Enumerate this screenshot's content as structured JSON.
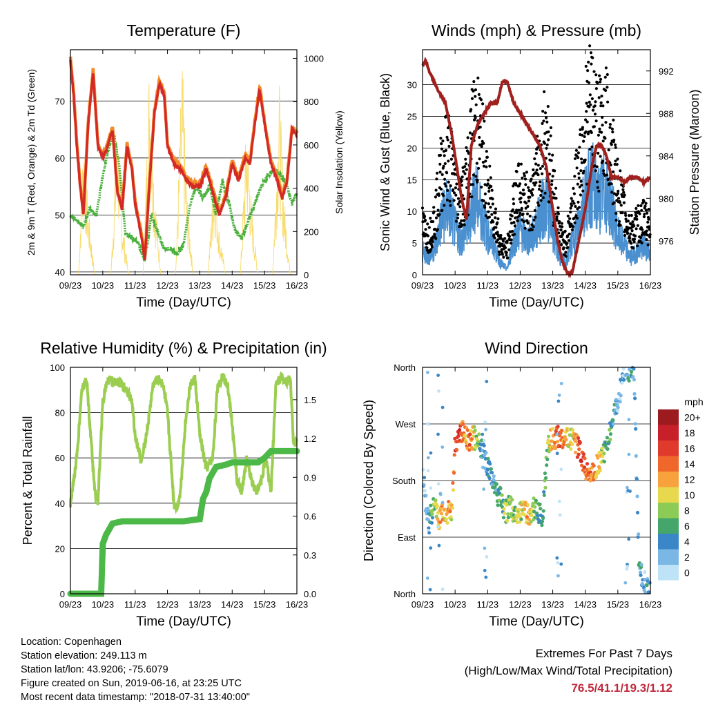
{
  "chart_data": [
    {
      "type": "line",
      "title": "Temperature (F)",
      "xlabel": "Time (Day/UTC)",
      "ylabel": "2m & 9m T (Red, Orange) & 2m Td (Green)",
      "y2label": "Solar Insolation (Yellow)",
      "x_ticks": [
        "09/23",
        "10/23",
        "11/23",
        "12/23",
        "13/23",
        "14/23",
        "15/23",
        "16/23"
      ],
      "y_ticks": [
        40,
        50,
        60,
        70
      ],
      "y2_ticks": [
        0,
        200,
        400,
        600,
        800,
        1000
      ],
      "ylim": [
        39.5,
        79
      ],
      "y2lim": [
        0,
        1040
      ],
      "xlim": [
        0,
        7
      ],
      "colors": {
        "t2m": "#d42a26",
        "t9m": "#f28a2a",
        "td": "#4ab03c",
        "solar": "#f7dc6f"
      },
      "series": [
        {
          "key": "t2m",
          "x": [
            0,
            0.1,
            0.2,
            0.3,
            0.4,
            0.55,
            0.7,
            0.85,
            1.0,
            1.15,
            1.3,
            1.45,
            1.6,
            1.75,
            1.9,
            2.0,
            2.1,
            2.2,
            2.3,
            2.45,
            2.6,
            2.75,
            2.9,
            3.0,
            3.2,
            3.4,
            3.6,
            3.8,
            4.0,
            4.2,
            4.4,
            4.6,
            4.8,
            5.0,
            5.2,
            5.4,
            5.55,
            5.7,
            5.85,
            6.0,
            6.2,
            6.4,
            6.55,
            6.7,
            6.85,
            7.0
          ],
          "y": [
            77,
            71,
            62,
            55,
            50,
            66,
            75,
            62,
            60,
            62,
            65,
            54,
            51,
            62,
            58,
            52,
            49,
            46,
            42,
            56,
            68,
            73,
            71,
            62,
            59,
            58,
            56,
            55,
            55,
            58,
            54,
            50,
            53,
            59,
            56,
            60,
            59,
            66,
            72,
            66,
            59,
            56,
            53,
            56,
            65,
            64
          ]
        },
        {
          "key": "td",
          "x": [
            0,
            0.2,
            0.4,
            0.6,
            0.8,
            1.0,
            1.2,
            1.35,
            1.5,
            1.7,
            1.9,
            2.1,
            2.3,
            2.5,
            2.7,
            2.9,
            3.1,
            3.3,
            3.5,
            3.7,
            3.9,
            4.1,
            4.3,
            4.5,
            4.7,
            4.9,
            5.1,
            5.3,
            5.5,
            5.7,
            5.9,
            6.1,
            6.3,
            6.5,
            6.7,
            6.85,
            7.0
          ],
          "y": [
            50,
            49,
            48,
            51,
            50,
            57,
            62,
            64,
            59,
            47,
            46,
            45,
            42,
            50,
            47,
            44,
            44,
            43,
            45,
            52,
            55,
            53,
            55,
            50,
            56,
            52,
            47,
            46,
            49,
            52,
            55,
            57,
            58,
            57,
            55,
            52,
            54
          ]
        },
        {
          "key": "solar",
          "x": [
            0,
            0.25,
            0.4,
            0.55,
            0.75,
            1.0,
            1.25,
            1.45,
            1.6,
            1.8,
            2.0,
            2.25,
            2.45,
            2.6,
            2.8,
            3.0,
            3.25,
            3.45,
            3.6,
            3.8,
            4.0,
            4.25,
            4.45,
            4.6,
            4.8,
            5.0,
            5.25,
            5.45,
            5.6,
            5.8,
            6.0,
            6.25,
            6.45,
            6.6,
            6.8,
            7.0
          ],
          "y": [
            0,
            0,
            650,
            300,
            0,
            0,
            0,
            700,
            250,
            0,
            0,
            0,
            1000,
            400,
            0,
            0,
            0,
            950,
            350,
            0,
            0,
            0,
            500,
            200,
            0,
            0,
            0,
            700,
            300,
            0,
            0,
            0,
            850,
            350,
            0,
            0
          ]
        }
      ]
    },
    {
      "type": "line",
      "title": "Winds (mph) & Pressure (mb)",
      "xlabel": "Time (Day/UTC)",
      "ylabel": "Sonic Wind & Gust (Blue, Black)",
      "y2label": "Station Pressure (Maroon)",
      "x_ticks": [
        "09/23",
        "10/23",
        "11/23",
        "12/23",
        "13/23",
        "14/23",
        "15/23",
        "16/23"
      ],
      "y_ticks": [
        0,
        5,
        10,
        15,
        20,
        25,
        30
      ],
      "y2_ticks": [
        976,
        980,
        984,
        988,
        992
      ],
      "ylim": [
        0,
        35.5
      ],
      "y2lim": [
        972.8,
        994
      ],
      "xlim": [
        0,
        7
      ],
      "colors": {
        "wind": "#4a90d0",
        "gust": "#000000",
        "pressure": "#a0201e"
      },
      "series": [
        {
          "key": "wind",
          "x": [
            0,
            0.2,
            0.4,
            0.6,
            0.8,
            1.0,
            1.2,
            1.4,
            1.6,
            1.8,
            2.0,
            2.2,
            2.4,
            2.6,
            2.8,
            3.0,
            3.2,
            3.4,
            3.6,
            3.8,
            4.0,
            4.2,
            4.4,
            4.6,
            4.8,
            5.0,
            5.2,
            5.4,
            5.6,
            5.8,
            6.0,
            6.2,
            6.4,
            6.6,
            6.8,
            7.0
          ],
          "y": [
            4,
            3,
            5,
            10,
            12,
            8,
            6,
            9,
            14,
            11,
            7,
            5,
            2,
            1,
            6,
            8,
            6,
            7,
            10,
            13,
            8,
            3,
            2,
            6,
            9,
            14,
            16,
            13,
            15,
            12,
            7,
            5,
            3,
            4,
            5,
            4
          ]
        },
        {
          "key": "gust",
          "x": [
            0,
            0.2,
            0.4,
            0.6,
            0.8,
            1.0,
            1.2,
            1.4,
            1.6,
            1.8,
            2.0,
            2.2,
            2.4,
            2.6,
            2.8,
            3.0,
            3.2,
            3.4,
            3.6,
            3.8,
            4.0,
            4.2,
            4.4,
            4.6,
            4.8,
            5.0,
            5.2,
            5.4,
            5.6,
            5.8,
            6.0,
            6.2,
            6.4,
            6.6,
            6.8,
            7.0
          ],
          "y": [
            8,
            6,
            10,
            18,
            20,
            15,
            12,
            17,
            25,
            22,
            14,
            10,
            5,
            4,
            11,
            14,
            12,
            13,
            18,
            24,
            15,
            7,
            5,
            11,
            17,
            25,
            28,
            23,
            26,
            20,
            14,
            10,
            7,
            8,
            9,
            8
          ]
        },
        {
          "key": "pressure",
          "x": [
            0,
            0.1,
            0.2,
            0.35,
            0.5,
            0.7,
            0.9,
            1.0,
            1.1,
            1.2,
            1.35,
            1.5,
            1.7,
            1.9,
            2.1,
            2.3,
            2.45,
            2.6,
            2.8,
            3.0,
            3.2,
            3.4,
            3.6,
            3.8,
            4.0,
            4.15,
            4.3,
            4.45,
            4.6,
            4.8,
            5.0,
            5.2,
            5.35,
            5.5,
            5.65,
            5.8,
            6.0,
            6.2,
            6.4,
            6.6,
            6.8,
            7.0
          ],
          "y": [
            992.5,
            993,
            992,
            991,
            990,
            989,
            986,
            984,
            982,
            980,
            978,
            985,
            987,
            988,
            989,
            989,
            991,
            991,
            989,
            988,
            987,
            986,
            985,
            983,
            979,
            976,
            974,
            973,
            973,
            976,
            979,
            983,
            985,
            985,
            984,
            982,
            982,
            981.5,
            982,
            982,
            981.5,
            982
          ]
        }
      ]
    },
    {
      "type": "line",
      "title": "Relative Humidity (%) & Precipitation (in)",
      "xlabel": "Time (Day/UTC)",
      "ylabel": "Percent & Total Rainfall",
      "x_ticks": [
        "09/23",
        "10/23",
        "11/23",
        "12/23",
        "13/23",
        "14/23",
        "15/23",
        "16/23"
      ],
      "y_ticks": [
        0,
        20,
        40,
        60,
        80,
        100
      ],
      "y2_ticks": [
        "0.0",
        "0.3",
        "0.6",
        "0.9",
        "1.2",
        "1.5"
      ],
      "ylim": [
        0,
        100
      ],
      "y2lim": [
        0,
        1.75
      ],
      "xlim": [
        0,
        7
      ],
      "colors": {
        "rh": "#9acd50",
        "precip": "#4cb848"
      },
      "series": [
        {
          "key": "rh",
          "x": [
            0,
            0.1,
            0.2,
            0.35,
            0.5,
            0.6,
            0.75,
            0.85,
            0.9,
            1.0,
            1.1,
            1.2,
            1.3,
            1.45,
            1.6,
            1.75,
            1.9,
            2.0,
            2.2,
            2.4,
            2.55,
            2.7,
            2.85,
            3.0,
            3.1,
            3.2,
            3.3,
            3.4,
            3.55,
            3.7,
            3.85,
            4.0,
            4.2,
            4.4,
            4.55,
            4.7,
            4.85,
            5.0,
            5.15,
            5.3,
            5.45,
            5.6,
            5.75,
            5.9,
            6.05,
            6.2,
            6.35,
            6.5,
            6.65,
            6.8,
            6.9,
            7.0
          ],
          "y": [
            40,
            50,
            60,
            90,
            95,
            75,
            45,
            40,
            55,
            85,
            92,
            95,
            93,
            94,
            92,
            90,
            85,
            70,
            58,
            75,
            92,
            95,
            93,
            80,
            60,
            40,
            38,
            45,
            75,
            92,
            95,
            70,
            55,
            60,
            92,
            96,
            93,
            75,
            50,
            45,
            60,
            50,
            45,
            50,
            60,
            45,
            92,
            96,
            94,
            95,
            65,
            68
          ]
        },
        {
          "key": "precip",
          "x": [
            0,
            0.8,
            0.95,
            1.0,
            1.1,
            1.3,
            1.6,
            2.0,
            2.5,
            3.0,
            3.5,
            4.0,
            4.1,
            4.2,
            4.3,
            4.5,
            4.8,
            5.0,
            5.3,
            5.8,
            6.0,
            6.2,
            6.5,
            6.8,
            7.0
          ],
          "y": [
            0,
            0,
            0,
            22,
            26,
            31,
            32,
            32,
            32,
            32,
            32,
            33,
            42,
            45,
            51,
            56,
            57,
            58,
            58,
            58,
            60,
            63,
            63,
            63,
            63
          ]
        }
      ]
    },
    {
      "type": "scatter",
      "title": "Wind Direction",
      "xlabel": "Time (Day/UTC)",
      "ylabel": "Direction (Colored By Speed)",
      "x_ticks": [
        "09/23",
        "10/23",
        "11/23",
        "12/23",
        "13/23",
        "14/23",
        "15/23",
        "16/23"
      ],
      "y_ticks": [
        "North",
        "East",
        "South",
        "West",
        "North"
      ],
      "ylim": [
        0,
        360
      ],
      "xlim": [
        0,
        7
      ],
      "legend": {
        "title": "mph",
        "labels": [
          "20+",
          "18",
          "16",
          "14",
          "12",
          "10",
          "8",
          "6",
          "4",
          "2",
          "0"
        ],
        "colors": [
          "#9b1b1f",
          "#c7202a",
          "#e03a2c",
          "#f0672c",
          "#f8a23e",
          "#e8d84e",
          "#8ccc56",
          "#44a66a",
          "#3a86c6",
          "#7ab7e4",
          "#bfe3f6"
        ]
      },
      "series": [
        {
          "name": "",
          "x": [
            0.05,
            0.1,
            0.2,
            0.3,
            0.4,
            0.5,
            0.6,
            0.7,
            0.8,
            0.9,
            1.0,
            1.1,
            1.2,
            1.3,
            1.45,
            1.55,
            1.65,
            1.75,
            1.85,
            2.0,
            2.2,
            2.4,
            2.55,
            2.7,
            2.85,
            3.0,
            3.1,
            3.25,
            3.4,
            3.55,
            3.7,
            3.85,
            4.0,
            4.2,
            4.4,
            4.6,
            4.8,
            5.0,
            5.2,
            5.4,
            5.55,
            5.7,
            5.85,
            6.0,
            6.1,
            6.2,
            6.35,
            6.5,
            6.65,
            6.8,
            6.9
          ],
          "y": [
            180,
            140,
            120,
            130,
            140,
            120,
            130,
            125,
            130,
            125,
            240,
            250,
            260,
            255,
            240,
            250,
            245,
            240,
            230,
            200,
            170,
            150,
            130,
            140,
            120,
            130,
            140,
            125,
            135,
            130,
            125,
            240,
            245,
            250,
            250,
            245,
            230,
            200,
            190,
            205,
            220,
            250,
            275,
            300,
            330,
            355,
            355,
            350,
            40,
            20,
            10
          ],
          "speed": [
            3,
            2,
            5,
            6,
            8,
            11,
            12,
            11,
            12,
            10,
            15,
            17,
            13,
            12,
            14,
            10,
            8,
            6,
            4,
            3,
            4,
            6,
            8,
            7,
            8,
            9,
            10,
            12,
            8,
            6,
            5,
            8,
            12,
            14,
            11,
            9,
            16,
            14,
            13,
            10,
            8,
            6,
            4,
            3,
            2,
            3,
            4,
            3,
            4,
            3,
            4
          ]
        }
      ]
    }
  ],
  "info": {
    "location": "Location: Copenhagen",
    "elevation": "Station elevation: 249.113 m",
    "latlon": "Station lat/lon: 43.9206; -75.6079",
    "created": "Figure created on Sun, 2019-06-16, at 23:25 UTC",
    "recent": "Most recent data timestamp: \"2018-07-31 13:40:00\""
  },
  "extremes": {
    "title": "Extremes For Past 7 Days",
    "subtitle": "(High/Low/Max Wind/Total Precipitation)",
    "values": "76.5/41.1/19.3/1.12"
  }
}
